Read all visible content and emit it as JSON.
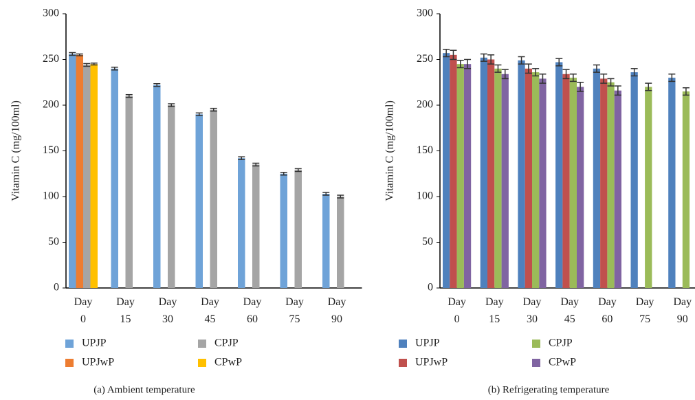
{
  "chart_data": [
    {
      "type": "bar",
      "caption": "(a) Ambient temperature",
      "ylabel": "Vitamin C (mg/100ml)",
      "categories": [
        "Day 0",
        "Day 15",
        "Day 30",
        "Day 45",
        "Day 60",
        "Day 75",
        "Day 90"
      ],
      "series": [
        {
          "name": "UPJP",
          "color": "#6fa3d8",
          "values": [
            256,
            240,
            222,
            190,
            142,
            125,
            103
          ],
          "errors": [
            1.5,
            1.5,
            1.5,
            1.5,
            1.5,
            1.5,
            1.5
          ]
        },
        {
          "name": "UPJwP",
          "color": "#ed7d31",
          "values": [
            255,
            null,
            null,
            null,
            null,
            null,
            null
          ],
          "errors": [
            1,
            null,
            null,
            null,
            null,
            null,
            null
          ]
        },
        {
          "name": "CPJP",
          "color": "#a5a5a5",
          "values": [
            244,
            210,
            200,
            195,
            135,
            129,
            100
          ],
          "errors": [
            1.5,
            1.5,
            1.5,
            1.5,
            1.5,
            1.5,
            1.5
          ]
        },
        {
          "name": "CPwP",
          "color": "#ffc000",
          "values": [
            245,
            null,
            null,
            null,
            null,
            null,
            null
          ],
          "errors": [
            1,
            null,
            null,
            null,
            null,
            null,
            null
          ]
        }
      ],
      "ylim": [
        0,
        300
      ],
      "yticks": [
        0,
        50,
        100,
        150,
        200,
        250,
        300
      ]
    },
    {
      "type": "bar",
      "caption": "(b) Refrigerating temperature",
      "ylabel": "Vitamin C (mg/100ml)",
      "categories": [
        "Day 0",
        "Day 15",
        "Day 30",
        "Day 45",
        "Day 60",
        "Day 75",
        "Day 90"
      ],
      "series": [
        {
          "name": "UPJP",
          "color": "#4f81bd",
          "values": [
            257,
            252,
            249,
            247,
            240,
            236,
            230
          ],
          "errors": [
            4,
            4,
            4,
            4,
            4,
            4,
            4
          ]
        },
        {
          "name": "UPJwP",
          "color": "#c0504d",
          "values": [
            255,
            250,
            240,
            234,
            229,
            null,
            null
          ],
          "errors": [
            5,
            5,
            5,
            5,
            5,
            null,
            null
          ]
        },
        {
          "name": "CPJP",
          "color": "#9bbb59",
          "values": [
            245,
            240,
            236,
            230,
            225,
            220,
            215
          ],
          "errors": [
            4,
            4,
            4,
            4,
            4,
            4,
            4
          ]
        },
        {
          "name": "CPwP",
          "color": "#8064a2",
          "values": [
            245,
            234,
            229,
            220,
            216,
            null,
            null
          ],
          "errors": [
            5,
            5,
            5,
            5,
            5,
            null,
            null
          ]
        }
      ],
      "ylim": [
        0,
        300
      ],
      "yticks": [
        0,
        50,
        100,
        150,
        200,
        250,
        300
      ]
    }
  ]
}
